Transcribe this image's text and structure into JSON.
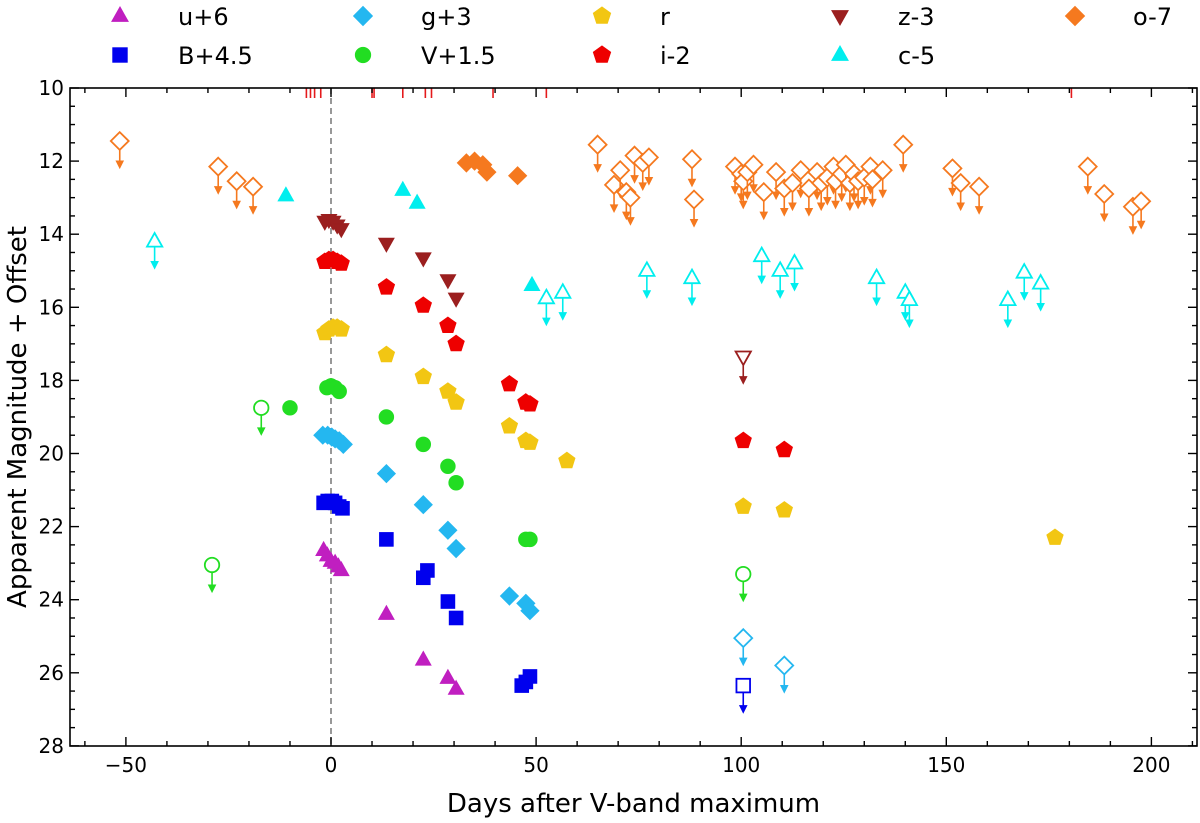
{
  "chart_data": {
    "type": "scatter",
    "xlabel": "Days after V-band maximum",
    "ylabel": "Apparent Magnitude + Offset",
    "xlim": [
      -62,
      212
    ],
    "ylim": [
      28,
      10
    ],
    "y_inverted": true,
    "x_ticks": [
      -50,
      0,
      50,
      100,
      150,
      200
    ],
    "y_ticks": [
      10,
      12,
      14,
      16,
      18,
      20,
      22,
      24,
      26,
      28
    ],
    "grid": false,
    "legend_position": "top, outside plot, 5 columns",
    "reference_line": {
      "x": 0,
      "style": "dashed",
      "color": "#7f7f7f"
    },
    "spectra_epochs": {
      "color": "#e41a1c",
      "x": [
        -6,
        -5,
        -4,
        -2.5,
        10,
        10.5,
        17.5,
        23,
        24.5,
        39.5,
        52.5,
        180.5
      ]
    },
    "series": [
      {
        "name": "u+6",
        "color": "#c01fc0",
        "marker": "triangle-up",
        "detections": [
          [
            -1.8,
            22.65
          ],
          [
            -0.9,
            22.8
          ],
          [
            0,
            22.95
          ],
          [
            1,
            23.0
          ],
          [
            1.8,
            23.1
          ],
          [
            2.5,
            23.2
          ],
          [
            13.5,
            24.4
          ],
          [
            22.5,
            25.65
          ],
          [
            28.5,
            26.15
          ],
          [
            30.5,
            26.45
          ]
        ],
        "upper_limits": []
      },
      {
        "name": "B+4.5",
        "color": "#0000ee",
        "marker": "square",
        "detections": [
          [
            -1.8,
            21.35
          ],
          [
            -0.8,
            21.3
          ],
          [
            0.2,
            21.3
          ],
          [
            1,
            21.35
          ],
          [
            2,
            21.45
          ],
          [
            2.8,
            21.5
          ],
          [
            13.5,
            22.35
          ],
          [
            22.5,
            23.4
          ],
          [
            23.5,
            23.2
          ],
          [
            28.5,
            24.05
          ],
          [
            30.5,
            24.5
          ],
          [
            46.5,
            26.35
          ],
          [
            47.5,
            26.25
          ],
          [
            48.5,
            26.1
          ]
        ],
        "upper_limits": [
          [
            100.5,
            26.35
          ]
        ]
      },
      {
        "name": "g+3",
        "color": "#24b7f0",
        "marker": "diamond",
        "detections": [
          [
            -2,
            19.5
          ],
          [
            -0.8,
            19.5
          ],
          [
            0.2,
            19.55
          ],
          [
            1,
            19.6
          ],
          [
            2,
            19.65
          ],
          [
            3,
            19.75
          ],
          [
            13.5,
            20.55
          ],
          [
            22.5,
            21.4
          ],
          [
            28.5,
            22.1
          ],
          [
            30.5,
            22.6
          ],
          [
            43.5,
            23.9
          ],
          [
            47.5,
            24.1
          ],
          [
            48.5,
            24.3
          ]
        ],
        "upper_limits": [
          [
            100.5,
            25.05
          ],
          [
            110.5,
            25.8
          ]
        ]
      },
      {
        "name": "V+1.5",
        "color": "#22dd22",
        "marker": "circle",
        "detections": [
          [
            -10,
            18.75
          ],
          [
            -1,
            18.2
          ],
          [
            0,
            18.15
          ],
          [
            1,
            18.2
          ],
          [
            2,
            18.3
          ],
          [
            13.5,
            19.0
          ],
          [
            22.5,
            19.75
          ],
          [
            28.5,
            20.35
          ],
          [
            30.5,
            20.8
          ],
          [
            47.5,
            22.35
          ],
          [
            48.5,
            22.35
          ]
        ],
        "upper_limits": [
          [
            -29,
            23.05
          ],
          [
            -17,
            18.75
          ],
          [
            100.5,
            23.3
          ]
        ]
      },
      {
        "name": "r",
        "color": "#f2c613",
        "marker": "pentagon",
        "detections": [
          [
            -1.5,
            16.7
          ],
          [
            -0.5,
            16.6
          ],
          [
            0.5,
            16.55
          ],
          [
            1.5,
            16.55
          ],
          [
            2.5,
            16.6
          ],
          [
            13.5,
            17.3
          ],
          [
            22.5,
            17.9
          ],
          [
            28.5,
            18.3
          ],
          [
            30.5,
            18.6
          ],
          [
            43.5,
            19.25
          ],
          [
            47.5,
            19.65
          ],
          [
            48.5,
            19.7
          ],
          [
            57.5,
            20.2
          ],
          [
            100.5,
            21.45
          ],
          [
            110.5,
            21.55
          ],
          [
            176.5,
            22.3
          ]
        ],
        "upper_limits": []
      },
      {
        "name": "i-2",
        "color": "#ee0000",
        "marker": "pentagon",
        "detections": [
          [
            -1.5,
            14.75
          ],
          [
            -0.5,
            14.7
          ],
          [
            0.5,
            14.7
          ],
          [
            1.5,
            14.75
          ],
          [
            2.5,
            14.8
          ],
          [
            13.5,
            15.45
          ],
          [
            22.5,
            15.95
          ],
          [
            28.5,
            16.5
          ],
          [
            30.5,
            17.0
          ],
          [
            43.5,
            18.1
          ],
          [
            47.5,
            18.6
          ],
          [
            48.5,
            18.65
          ],
          [
            100.5,
            19.65
          ],
          [
            110.5,
            19.9
          ]
        ],
        "upper_limits": []
      },
      {
        "name": "z-3",
        "color": "#9b1f1f",
        "marker": "triangle-down",
        "detections": [
          [
            -1.5,
            13.65
          ],
          [
            -0.5,
            13.6
          ],
          [
            0.5,
            13.65
          ],
          [
            1.5,
            13.75
          ],
          [
            2.5,
            13.85
          ],
          [
            13.5,
            14.25
          ],
          [
            22.5,
            14.65
          ],
          [
            28.5,
            15.25
          ],
          [
            30.5,
            15.75
          ]
        ],
        "upper_limits": [
          [
            100.5,
            17.35
          ]
        ]
      },
      {
        "name": "c-5",
        "color": "#00eeee",
        "marker": "triangle-up",
        "detections": [
          [
            -11,
            12.95
          ],
          [
            17.5,
            12.8
          ],
          [
            21,
            13.15
          ],
          [
            49,
            15.4
          ]
        ],
        "upper_limits": [
          [
            -43,
            14.2
          ],
          [
            52.5,
            15.75
          ],
          [
            56.5,
            15.6
          ],
          [
            77,
            15.0
          ],
          [
            88,
            15.2
          ],
          [
            105,
            14.6
          ],
          [
            109.5,
            15.0
          ],
          [
            113,
            14.8
          ],
          [
            133,
            15.2
          ],
          [
            140,
            15.6
          ],
          [
            141,
            15.8
          ],
          [
            165,
            15.8
          ],
          [
            169,
            15.05
          ],
          [
            173,
            15.35
          ]
        ]
      },
      {
        "name": "o-7",
        "color": "#f5791f",
        "marker": "diamond",
        "detections": [
          [
            33,
            12.05
          ],
          [
            35,
            12.0
          ],
          [
            37,
            12.1
          ],
          [
            38,
            12.3
          ],
          [
            45.5,
            12.4
          ]
        ],
        "upper_limits": [
          [
            -51.5,
            11.45
          ],
          [
            -27.5,
            12.15
          ],
          [
            -23,
            12.55
          ],
          [
            -19,
            12.7
          ],
          [
            65,
            11.55
          ],
          [
            69,
            12.65
          ],
          [
            70.5,
            12.25
          ],
          [
            72,
            12.85
          ],
          [
            73,
            13.0
          ],
          [
            74,
            11.85
          ],
          [
            76,
            12.05
          ],
          [
            77.5,
            11.9
          ],
          [
            88,
            11.95
          ],
          [
            88.5,
            13.05
          ],
          [
            98.5,
            12.15
          ],
          [
            100,
            12.35
          ],
          [
            100.5,
            12.55
          ],
          [
            101.5,
            12.3
          ],
          [
            103,
            12.1
          ],
          [
            105.5,
            12.85
          ],
          [
            108.5,
            12.3
          ],
          [
            110.5,
            12.75
          ],
          [
            112.5,
            12.6
          ],
          [
            114.5,
            12.25
          ],
          [
            116.5,
            12.75
          ],
          [
            118.5,
            12.3
          ],
          [
            119.5,
            12.6
          ],
          [
            121,
            12.45
          ],
          [
            122.5,
            12.15
          ],
          [
            123,
            12.55
          ],
          [
            124.5,
            12.35
          ],
          [
            125.5,
            12.1
          ],
          [
            126.5,
            12.6
          ],
          [
            127.5,
            12.35
          ],
          [
            128.5,
            12.55
          ],
          [
            130,
            12.45
          ],
          [
            131.5,
            12.15
          ],
          [
            132,
            12.5
          ],
          [
            134.5,
            12.25
          ],
          [
            139.5,
            11.55
          ],
          [
            151.5,
            12.2
          ],
          [
            153.5,
            12.6
          ],
          [
            158,
            12.7
          ],
          [
            184.5,
            12.15
          ],
          [
            188.5,
            12.9
          ],
          [
            195.5,
            13.25
          ],
          [
            197.5,
            13.1
          ]
        ]
      }
    ]
  }
}
